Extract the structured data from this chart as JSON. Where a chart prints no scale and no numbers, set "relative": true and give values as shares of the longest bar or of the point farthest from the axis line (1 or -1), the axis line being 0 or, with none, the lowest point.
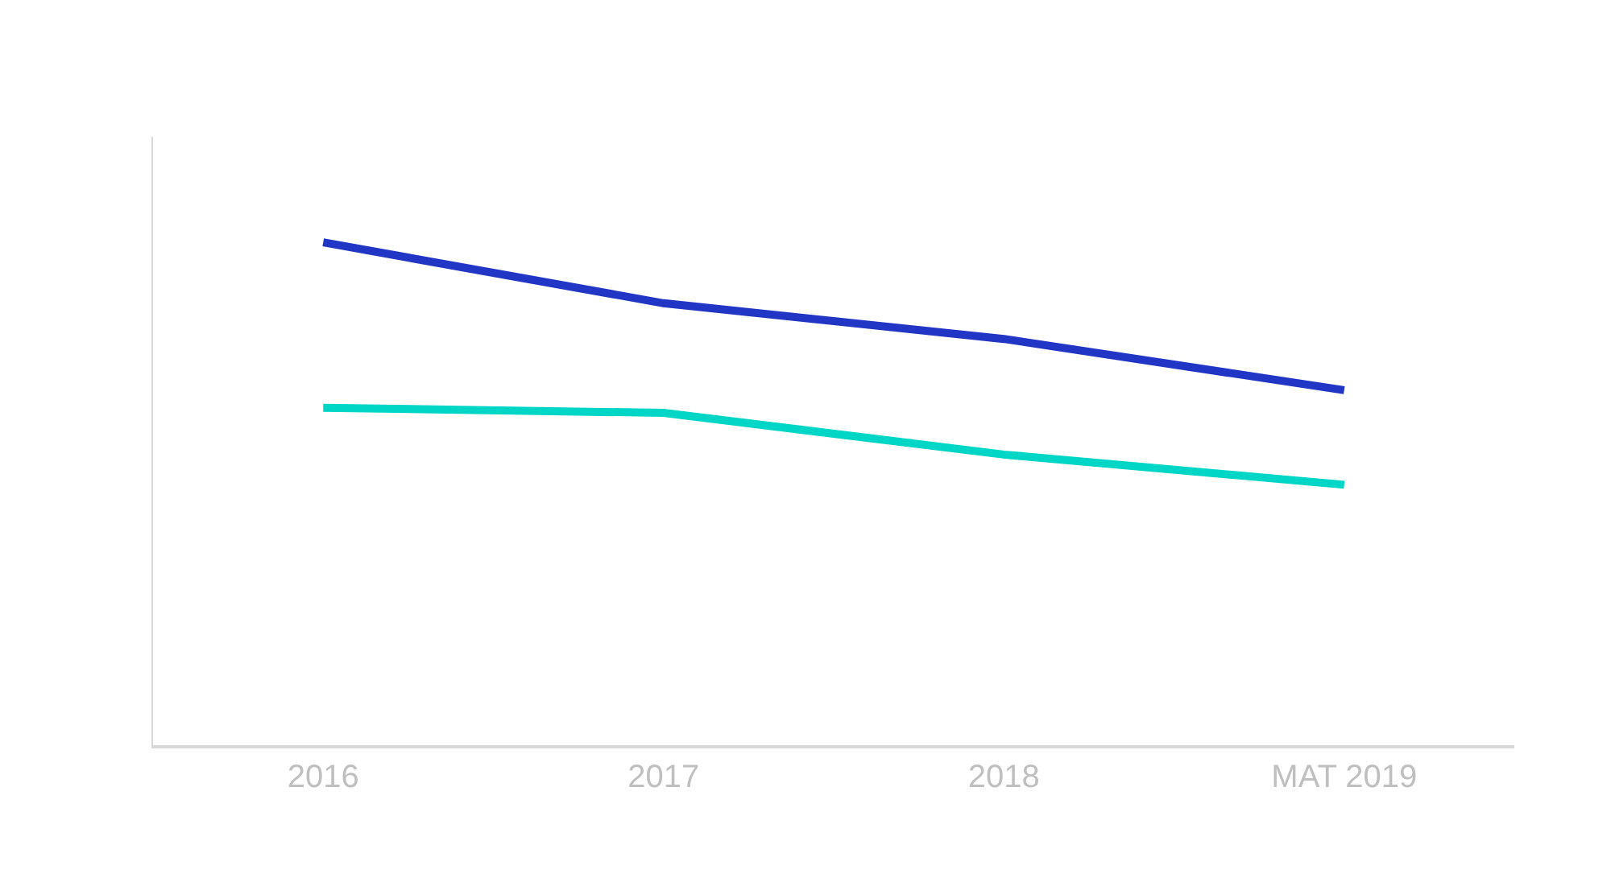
{
  "chart_data": {
    "type": "line",
    "relative": true,
    "categories": [
      "2016",
      "2017",
      "2018",
      "MAT 2019"
    ],
    "series": [
      {
        "color": "#2236c6",
        "values": [
          1,
          0.879,
          0.808,
          0.706
        ]
      },
      {
        "color": "#00d6c6",
        "values": [
          0.671,
          0.661,
          0.578,
          0.518
        ]
      }
    ],
    "legend": false,
    "marker": "none",
    "line_style": "solid",
    "tick_labels": "x"
  }
}
